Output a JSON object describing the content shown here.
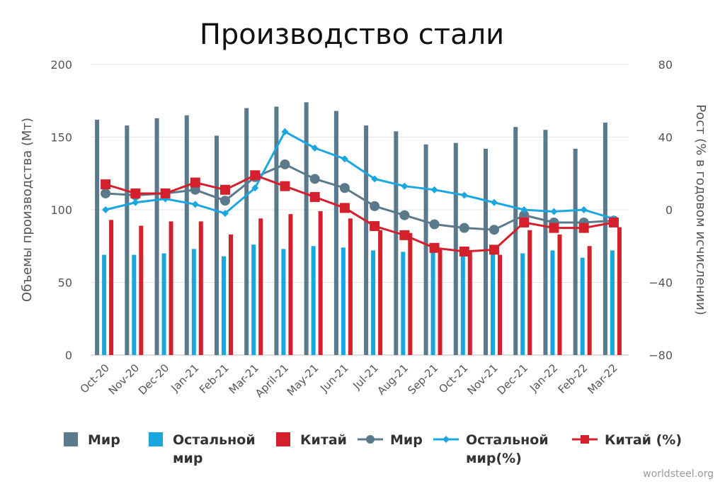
{
  "chart_data": {
    "type": "bar",
    "title": "Производство стали",
    "ylabel": "Объемы производства (Мт)",
    "y2label": "Рост (% в годовом исчислении)",
    "ylim": [
      0,
      200
    ],
    "y2lim": [
      -80,
      80
    ],
    "yticks": [
      "0",
      "50",
      "100",
      "150",
      "200"
    ],
    "y2ticks": [
      "−80",
      "−40",
      "0",
      "40",
      "80"
    ],
    "categories": [
      "Oct-20",
      "Nov-20",
      "Dec-20",
      "Jan-21",
      "Feb-21",
      "Mar-21",
      "April-21",
      "May-21",
      "Jun-21",
      "Jul-21",
      "Aug-21",
      "Sep-21",
      "Oct-21",
      "Nov-21",
      "Dec-21",
      "Jan-22",
      "Feb-22",
      "Mar-22"
    ],
    "series": [
      {
        "name": "Мир",
        "kind": "bar",
        "axis": "left",
        "color": "#5a7a8c",
        "values": [
          162,
          158,
          163,
          165,
          151,
          170,
          171,
          174,
          168,
          158,
          154,
          145,
          146,
          142,
          157,
          155,
          142,
          160
        ]
      },
      {
        "name": "Остальной мир",
        "kind": "bar",
        "axis": "left",
        "color": "#1aa7df",
        "values": [
          69,
          69,
          70,
          73,
          68,
          76,
          73,
          75,
          74,
          72,
          71,
          71,
          70,
          71,
          70,
          72,
          67,
          72
        ]
      },
      {
        "name": "Китай",
        "kind": "bar",
        "axis": "left",
        "color": "#d4202c",
        "values": [
          93,
          89,
          92,
          92,
          83,
          94,
          97,
          99,
          94,
          86,
          84,
          73,
          71,
          69,
          86,
          83,
          75,
          88
        ]
      },
      {
        "name": "Мир",
        "kind": "line",
        "axis": "right",
        "color": "#5a7a8c",
        "marker": "circle",
        "values": [
          9,
          8,
          9,
          11,
          5,
          18,
          25,
          17,
          12,
          2,
          -3,
          -8,
          -10,
          -11,
          -3,
          -7,
          -7,
          -6
        ]
      },
      {
        "name": "Остальной мир(%)",
        "kind": "line",
        "axis": "right",
        "color": "#1aa7df",
        "marker": "diamond",
        "values": [
          0,
          4,
          6,
          3,
          -2,
          12,
          43,
          34,
          28,
          17,
          13,
          11,
          8,
          4,
          0,
          -1,
          0,
          -5
        ]
      },
      {
        "name": "Китай (%)",
        "kind": "line",
        "axis": "right",
        "color": "#d4202c",
        "marker": "square",
        "values": [
          14,
          9,
          9,
          15,
          11,
          19,
          13,
          7,
          1,
          -9,
          -14,
          -21,
          -23,
          -22,
          -7,
          -10,
          -10,
          -7
        ]
      }
    ],
    "legend": [
      {
        "label_lines": [
          "Мир"
        ],
        "color": "#5a7a8c",
        "style": "bar"
      },
      {
        "label_lines": [
          "Остальной",
          "мир"
        ],
        "color": "#1aa7df",
        "style": "bar"
      },
      {
        "label_lines": [
          "Китай"
        ],
        "color": "#d4202c",
        "style": "bar"
      },
      {
        "label_lines": [
          "Мир"
        ],
        "color": "#5a7a8c",
        "style": "line-circle"
      },
      {
        "label_lines": [
          "Остальной",
          "мир(%)"
        ],
        "color": "#1aa7df",
        "style": "line-diamond"
      },
      {
        "label_lines": [
          "Китай (%)"
        ],
        "color": "#d4202c",
        "style": "line-square"
      }
    ],
    "legend_position": "bottom",
    "grid": true,
    "source": "worldsteel.org"
  }
}
